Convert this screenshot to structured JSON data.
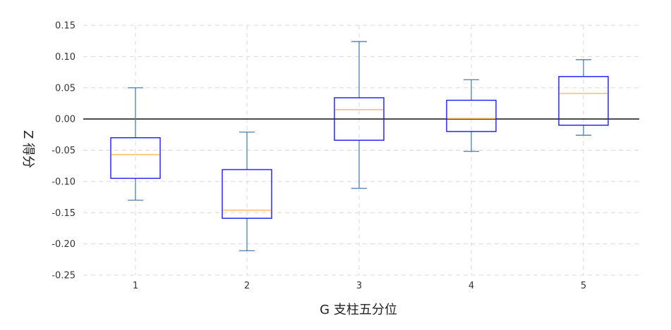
{
  "chart_data": {
    "type": "box",
    "xlabel": "G 支柱五分位",
    "ylabel": "Z 得分",
    "ylim": [
      -0.25,
      0.15
    ],
    "yticks": [
      "0.15",
      "0.10",
      "0.05",
      "0.00",
      "-0.05",
      "-0.10",
      "-0.15",
      "-0.20",
      "-0.25"
    ],
    "categories": [
      "1",
      "2",
      "3",
      "4",
      "5"
    ],
    "boxes": [
      {
        "category": "1",
        "whisker_low": -0.13,
        "q1": -0.095,
        "median": -0.057,
        "q3": -0.03,
        "whisker_high": 0.05
      },
      {
        "category": "2",
        "whisker_low": -0.211,
        "q1": -0.159,
        "median": -0.146,
        "q3": -0.081,
        "whisker_high": -0.021
      },
      {
        "category": "3",
        "whisker_low": -0.111,
        "q1": -0.034,
        "median": 0.015,
        "q3": 0.034,
        "whisker_high": 0.124
      },
      {
        "category": "4",
        "whisker_low": -0.052,
        "q1": -0.02,
        "median": 0.001,
        "q3": 0.03,
        "whisker_high": 0.063
      },
      {
        "category": "5",
        "whisker_low": -0.026,
        "q1": -0.01,
        "median": 0.041,
        "q3": 0.068,
        "whisker_high": 0.095
      }
    ],
    "reference_line": 0.0,
    "grid": true,
    "colors": {
      "box": "#1a1aff",
      "whisker": "#4a7fb5",
      "median": "#f5c26b",
      "reference": "#111111",
      "grid": "#d9d9d9"
    }
  }
}
